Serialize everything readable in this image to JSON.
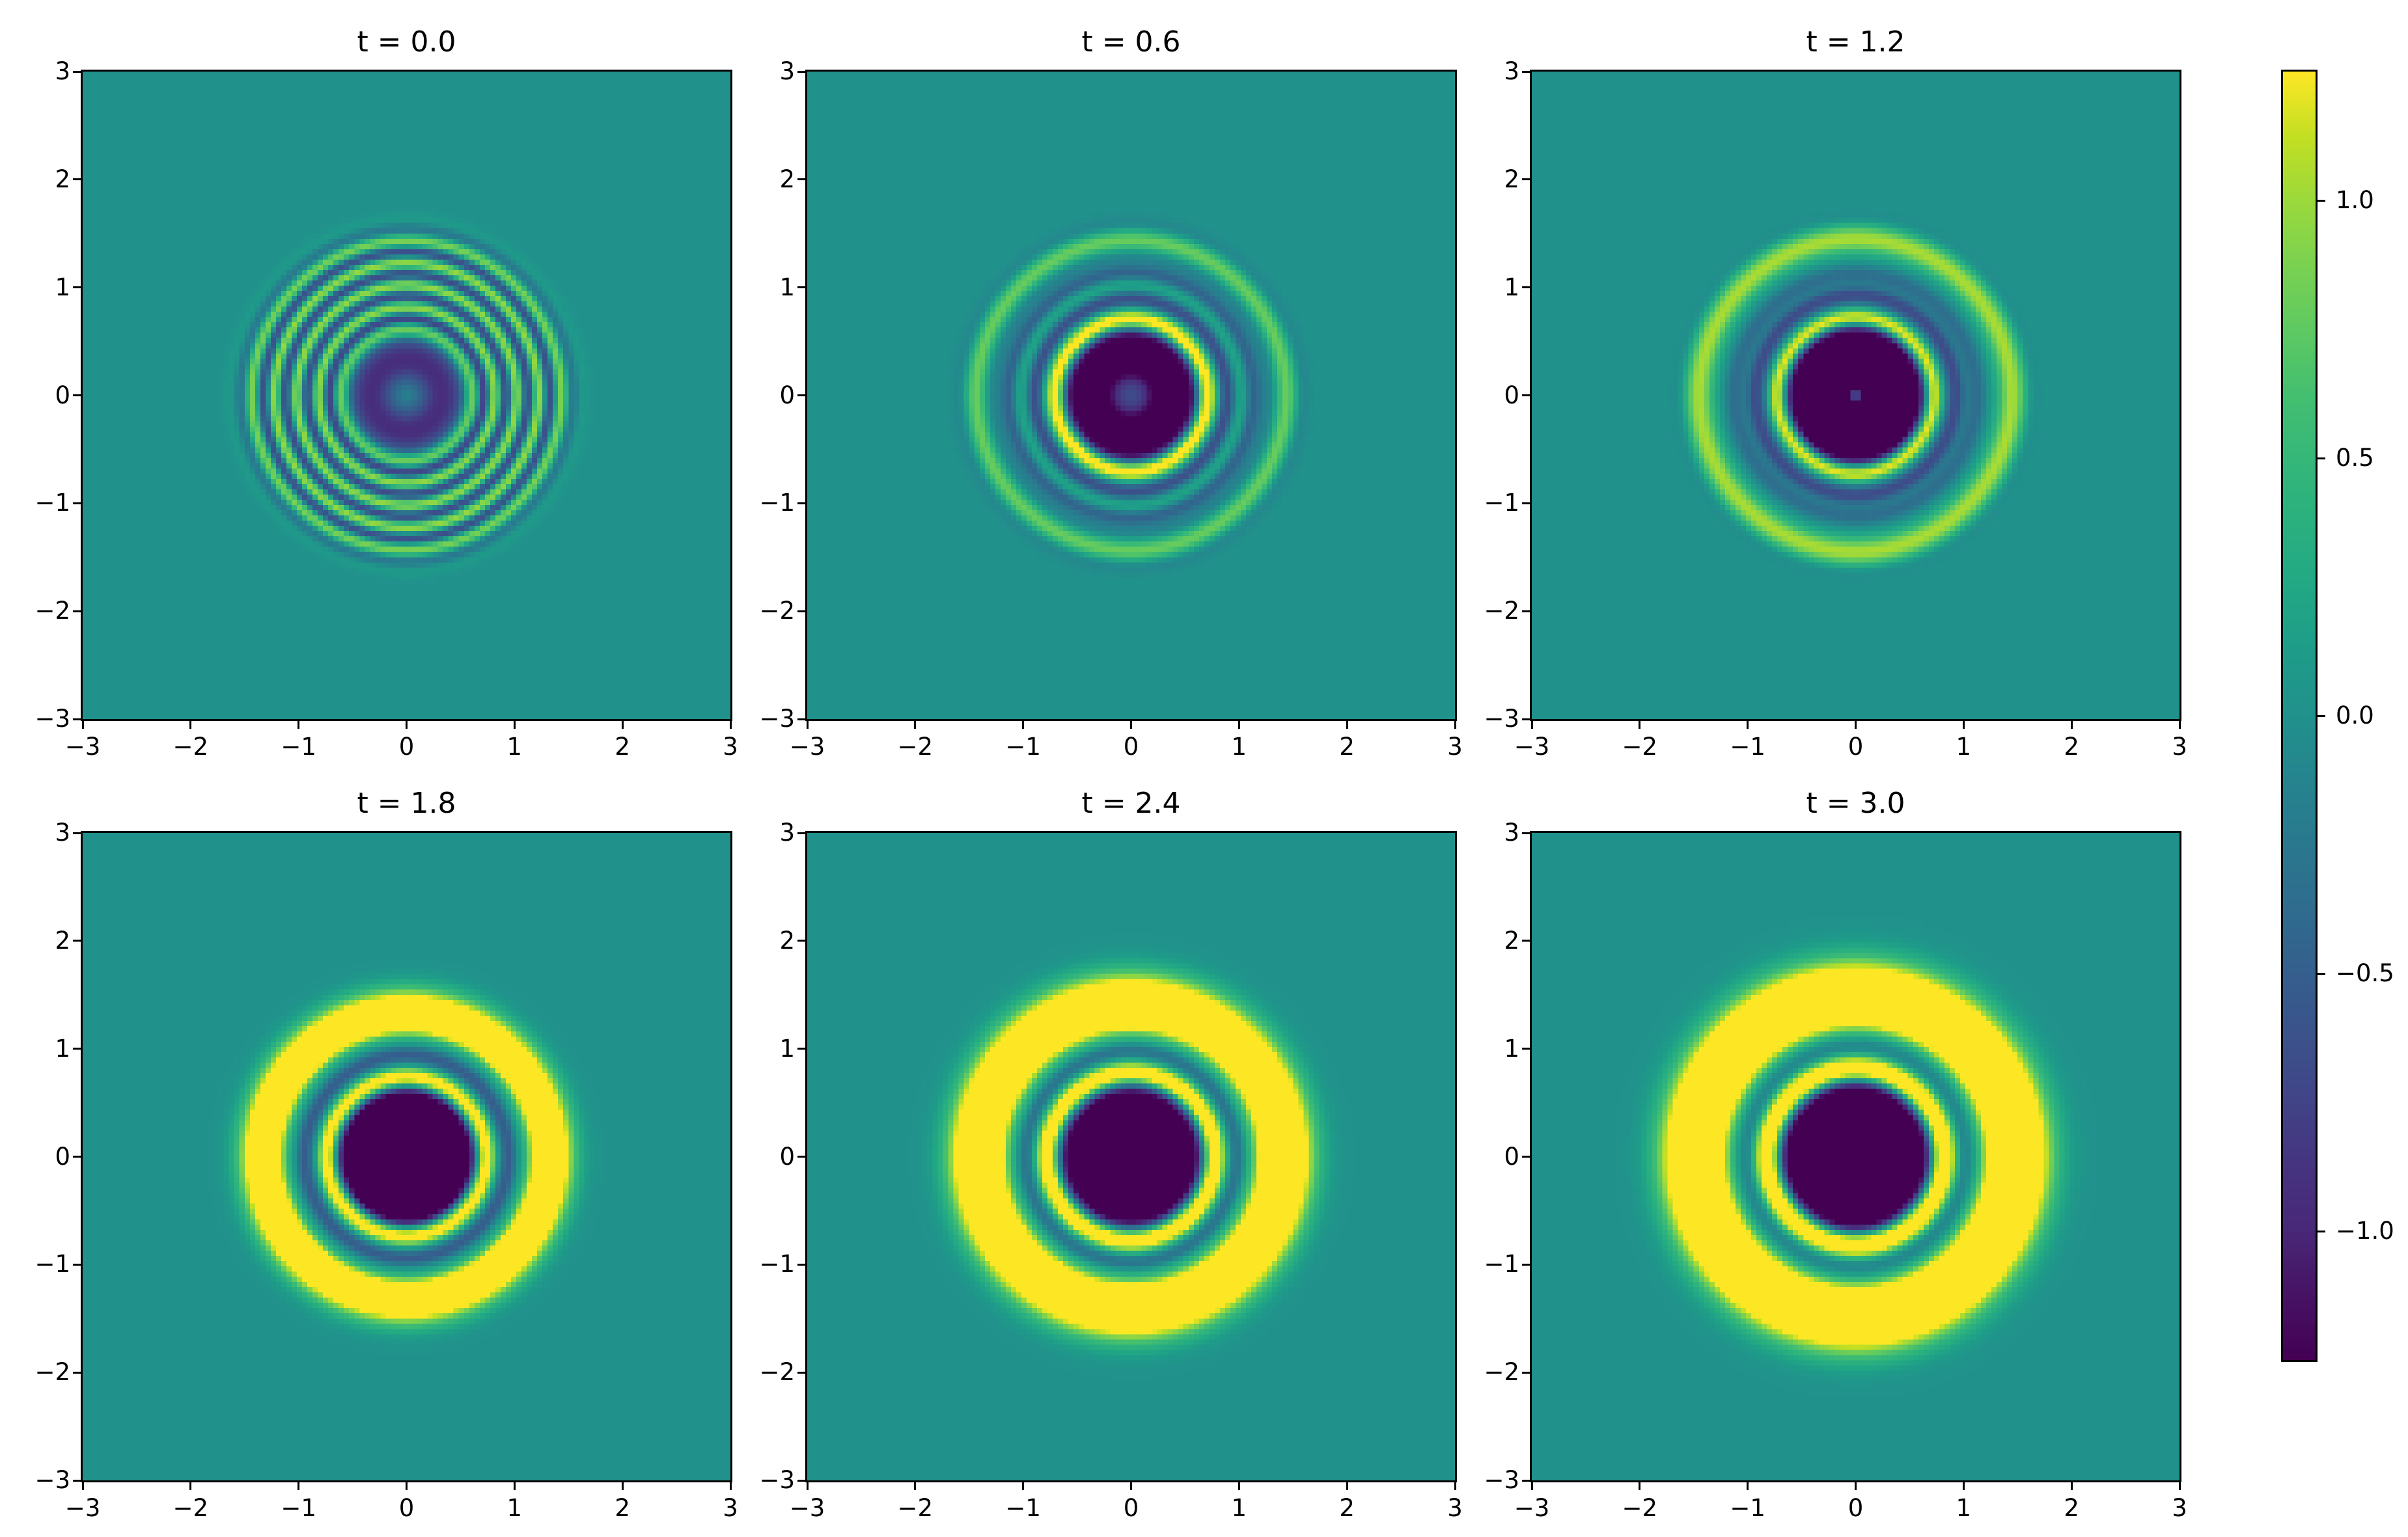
{
  "figure": {
    "background": "#ffffff",
    "kind": "matplotlib multi-panel imshow figure with shared colorbar"
  },
  "chart_data": {
    "type": "heatmap",
    "title": "",
    "xlabel": "",
    "ylabel": "",
    "x_range": [
      -3,
      3
    ],
    "y_range": [
      -3,
      3
    ],
    "xticks": [
      -3,
      -2,
      -1,
      0,
      1,
      2,
      3
    ],
    "yticks": [
      -3,
      -2,
      -1,
      0,
      1,
      2,
      3
    ],
    "xtick_labels": [
      "−3",
      "−2",
      "−1",
      "0",
      "1",
      "2",
      "3"
    ],
    "ytick_labels": [
      "−3",
      "−2",
      "−1",
      "0",
      "1",
      "2",
      "3"
    ],
    "grid": false,
    "colormap": "viridis",
    "vmin": -1.25,
    "vmax": 1.25,
    "colorbar_ticks": [
      1.0,
      0.5,
      0.0,
      -0.5,
      -1.0
    ],
    "colorbar_tick_labels": [
      "1.0",
      "0.5",
      "0.0",
      "−0.5",
      "−1.0"
    ],
    "grid_resolution": 124,
    "field_description": "Radially symmetric expanding wave field u(x,y,t). Each panel shows u at the labeled time; profile encoded as Gaussian rings [center_radius, sigma, amplitude] summed over r = sqrt(x^2+y^2), clipped to [vmin, vmax].",
    "panels": [
      {
        "title": "t = 0.0",
        "time": 0.0,
        "radial_profile_rings": [
          [
            0.33,
            0.17,
            -0.95
          ],
          [
            0.61,
            0.05,
            1.1
          ],
          [
            0.7125,
            0.045,
            -0.9
          ],
          [
            0.815,
            0.048,
            1.1
          ],
          [
            0.9175,
            0.045,
            -0.9
          ],
          [
            1.02,
            0.048,
            1.1
          ],
          [
            1.1225,
            0.045,
            -0.9
          ],
          [
            1.225,
            0.048,
            1.1
          ],
          [
            1.3275,
            0.045,
            -0.85
          ],
          [
            1.43,
            0.048,
            0.95
          ],
          [
            1.53,
            0.045,
            -0.35
          ],
          [
            1.62,
            0.05,
            0.12
          ]
        ]
      },
      {
        "title": "t = 0.6",
        "time": 0.6,
        "radial_profile_rings": [
          [
            0.38,
            0.2,
            -1.9
          ],
          [
            0.0,
            0.07,
            -0.3
          ],
          [
            0.7,
            0.065,
            1.9
          ],
          [
            0.89,
            0.05,
            -0.6
          ],
          [
            1.02,
            0.045,
            0.25
          ],
          [
            1.14,
            0.05,
            -0.45
          ],
          [
            1.28,
            0.05,
            -0.15
          ],
          [
            1.44,
            0.07,
            0.8
          ],
          [
            1.58,
            0.05,
            -0.15
          ]
        ]
      },
      {
        "title": "t = 1.2",
        "time": 1.2,
        "radial_profile_rings": [
          [
            0.33,
            0.23,
            -2.6
          ],
          [
            0.0,
            0.035,
            0.5
          ],
          [
            0.72,
            0.06,
            1.8
          ],
          [
            0.93,
            0.055,
            -0.6
          ],
          [
            1.12,
            0.06,
            -0.35
          ],
          [
            1.45,
            0.095,
            1.05
          ],
          [
            1.63,
            0.05,
            -0.12
          ]
        ]
      },
      {
        "title": "t = 1.8",
        "time": 1.8,
        "radial_profile_rings": [
          [
            0.3,
            0.24,
            -3.0
          ],
          [
            0.73,
            0.07,
            2.0
          ],
          [
            0.95,
            0.06,
            -0.55
          ],
          [
            1.1,
            0.05,
            -0.28
          ],
          [
            1.32,
            0.15,
            2.3
          ]
        ]
      },
      {
        "title": "t = 2.4",
        "time": 2.4,
        "radial_profile_rings": [
          [
            0.28,
            0.24,
            -3.2
          ],
          [
            0.77,
            0.075,
            2.0
          ],
          [
            0.99,
            0.06,
            -0.5
          ],
          [
            1.13,
            0.05,
            -0.25
          ],
          [
            1.4,
            0.19,
            2.6
          ]
        ]
      },
      {
        "title": "t = 3.0",
        "time": 3.0,
        "radial_profile_rings": [
          [
            0.3,
            0.26,
            -3.4
          ],
          [
            0.81,
            0.085,
            2.2
          ],
          [
            1.03,
            0.07,
            -0.45
          ],
          [
            1.16,
            0.06,
            -0.28
          ],
          [
            1.47,
            0.22,
            2.8
          ]
        ]
      }
    ]
  },
  "colormap_stops": {
    "positions": [
      0.0,
      0.05,
      0.1,
      0.15,
      0.2,
      0.25,
      0.3,
      0.35,
      0.4,
      0.45,
      0.5,
      0.55,
      0.6,
      0.65,
      0.7,
      0.75,
      0.8,
      0.85,
      0.9,
      0.95,
      1.0
    ],
    "colors": [
      "#440154",
      "#471365",
      "#482878",
      "#463480",
      "#414487",
      "#3b528b",
      "#355f8d",
      "#2f6c8e",
      "#2a788e",
      "#25848e",
      "#21918c",
      "#1e9c89",
      "#22a884",
      "#2ab07f",
      "#35b779",
      "#44bf70",
      "#5ec962",
      "#7ad151",
      "#9bd93c",
      "#c2df23",
      "#fde725"
    ]
  },
  "colors": {
    "background_zero_level": "#21918c",
    "saturated_low": "#440154",
    "saturated_high": "#fde725",
    "spine": "#000000",
    "text": "#000000"
  }
}
